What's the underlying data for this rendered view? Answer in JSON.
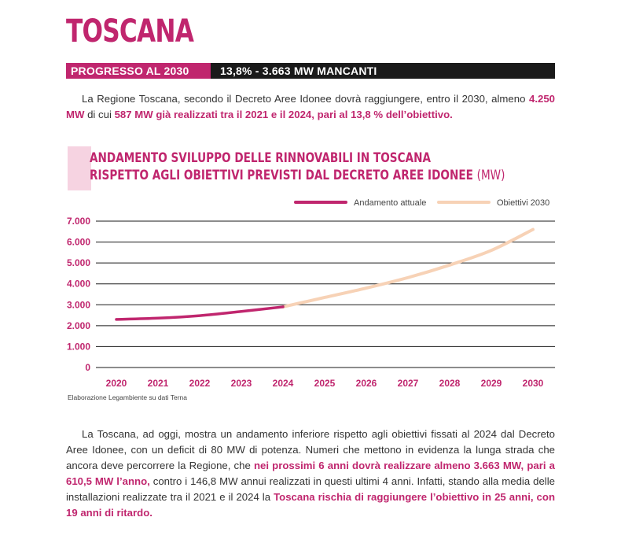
{
  "header": {
    "title": "TOSCANA",
    "progress_label": "PROGRESSO AL 2030",
    "progress_value": "13,8% - 3.663 MW MANCANTI"
  },
  "intro": {
    "t1": "La Regione Toscana, secondo il Decreto Aree Idonee dovrà raggiungere, entro il 2030, almeno ",
    "h1": "4.250 MW",
    "t2": " di cui ",
    "h2": "587 MW già realizzati tra il 2021 e il 2024, pari al 13,8 % dell’obiettivo."
  },
  "chart_header": {
    "line1": "ANDAMENTO SVILUPPO DELLE RINNOVABILI IN TOSCANA",
    "line2": "RISPETTO AGLI OBIETTIVI PREVISTI DAL DECRETO AREE IDONEE",
    "unit": "(MW)"
  },
  "colors": {
    "accent": "#c0266e",
    "target": "#f7d2b6",
    "grid": "#1a1a1a"
  },
  "chart_data": {
    "type": "line",
    "title": "ANDAMENTO SVILUPPO DELLE RINNOVABILI IN TOSCANA RISPETTO AGLI OBIETTIVI PREVISTI DAL DECRETO AREE IDONEE (MW)",
    "x": [
      "2020",
      "2021",
      "2022",
      "2023",
      "2024",
      "2025",
      "2026",
      "2027",
      "2028",
      "2029",
      "2030"
    ],
    "y_ticks": [
      "0",
      "1.000",
      "2.000",
      "3.000",
      "4.000",
      "5.000",
      "6.000",
      "7.000"
    ],
    "ylim": [
      0,
      7000
    ],
    "grid": "horizontal",
    "legend_position": "top-right",
    "series": [
      {
        "name": "Andamento attuale",
        "color": "#c0266e",
        "values": [
          2300,
          2360,
          2480,
          2680,
          2900,
          null,
          null,
          null,
          null,
          null,
          null
        ]
      },
      {
        "name": "Obiettivi 2030",
        "color": "#f7d2b6",
        "values": [
          null,
          null,
          null,
          null,
          2900,
          3350,
          3800,
          4300,
          4900,
          5600,
          6600
        ]
      }
    ],
    "source": "Elaborazione Legambiente su dati Terna"
  },
  "body": {
    "t1": "La Toscana, ad oggi, mostra un andamento inferiore rispetto agli obiettivi fissati al 2024 dal Decreto Aree Idonee, con un deficit di 80 MW di potenza. Numeri che mettono in evidenza la lunga strada che ancora deve percorrere la Regione, che ",
    "h1": "nei prossimi 6 anni dovrà realizzare almeno 3.663 MW, pari a 610,5 MW l’anno,",
    "t2": " contro i 146,8 MW annui realizzati in questi ultimi 4 anni. Infatti, stando alla media delle installazioni realizzate tra il 2021 e il 2024 la ",
    "h2": "Toscana rischia di raggiungere l’obiettivo in 25 anni, con 19 anni di ritardo."
  }
}
